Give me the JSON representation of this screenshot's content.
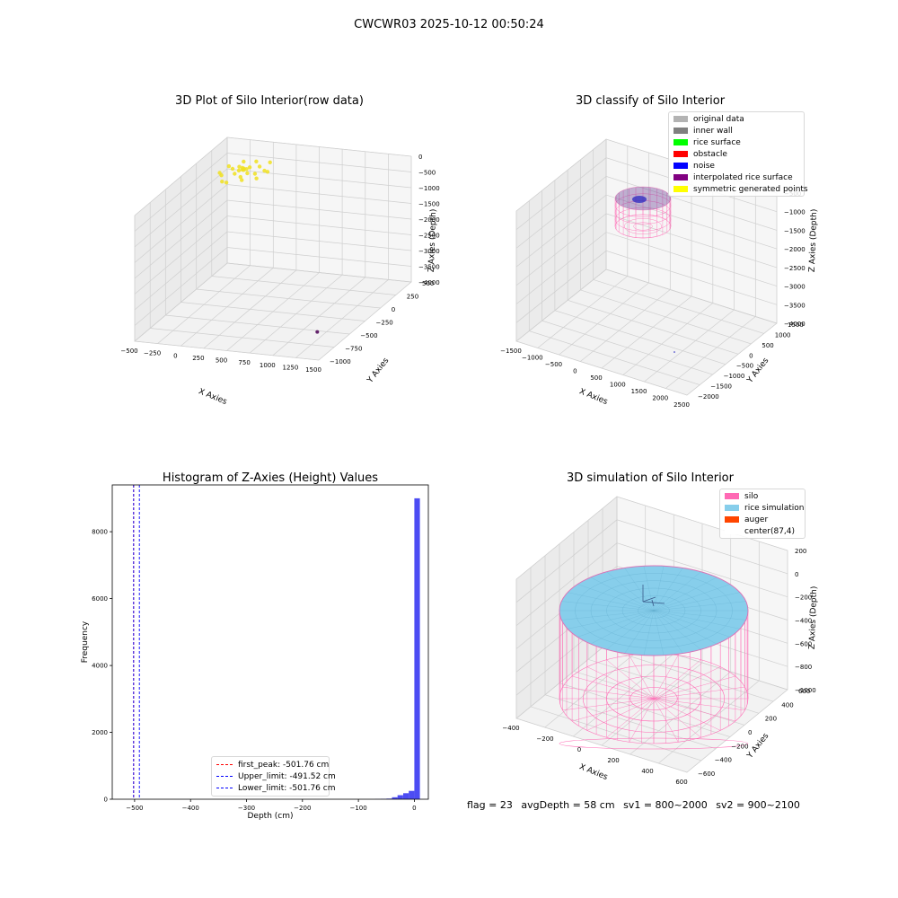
{
  "figure": {
    "suptitle": "CWCWR03 2025-10-12 00:50:24"
  },
  "panels": {
    "raw": {
      "title": "3D Plot of Silo Interior(row data)",
      "xlabel": "X Axies",
      "ylabel": "Y Axies",
      "zlabel": "Z Axies (Depth)",
      "xticks": [
        "−500",
        "−250",
        "0",
        "250",
        "500",
        "750",
        "1000",
        "1250",
        "1500"
      ],
      "yticks": [
        "500",
        "250",
        "0",
        "−250",
        "−500",
        "−750",
        "−1000"
      ],
      "zticks": [
        "0",
        "−500",
        "−1000",
        "−1500",
        "−2000",
        "−2500",
        "−3000",
        "−3500",
        "−4000"
      ]
    },
    "classify": {
      "title": "3D classify of Silo Interior",
      "xlabel": "X Axies",
      "ylabel": "Y Axies",
      "zlabel": "Z Axies (Depth)",
      "xticks": [
        "−1500",
        "−1000",
        "−500",
        "0",
        "500",
        "1000",
        "1500",
        "2000",
        "2500"
      ],
      "yticks": [
        "1500",
        "1000",
        "500",
        "0",
        "−500",
        "−1000",
        "−1500",
        "−2000"
      ],
      "zticks": [
        "−500",
        "−1000",
        "−1500",
        "−2000",
        "−2500",
        "−3000",
        "−3500",
        "−4000"
      ]
    },
    "simulation": {
      "title": "3D simulation of Silo Interior",
      "xlabel": "X Axies",
      "ylabel": "Y Axies",
      "zlabel": "Z Axies (Depth)",
      "xticks": [
        "−400",
        "−200",
        "0",
        "200",
        "400",
        "600"
      ],
      "yticks": [
        "600",
        "400",
        "200",
        "0",
        "−200",
        "−400",
        "−600"
      ],
      "zticks": [
        "200",
        "0",
        "−200",
        "−400",
        "−600",
        "−800",
        "−1000"
      ]
    }
  },
  "legends": {
    "classify": [
      {
        "label": "original data",
        "color": "#b3b3b3"
      },
      {
        "label": "inner wall",
        "color": "#808080"
      },
      {
        "label": "rice surface",
        "color": "#00ff00"
      },
      {
        "label": "obstacle",
        "color": "#ff0000"
      },
      {
        "label": "noise",
        "color": "#0000ff"
      },
      {
        "label": "interpolated rice surface",
        "color": "#800080"
      },
      {
        "label": "symmetric generated points",
        "color": "#ffff00"
      }
    ],
    "simulation": [
      {
        "label": "silo",
        "color": "#ff69b4"
      },
      {
        "label": "rice simulation",
        "color": "#87ceeb"
      },
      {
        "label": "auger",
        "color": "#ff4500"
      },
      {
        "label": "center(87,4)",
        "color": "#ffffff"
      }
    ],
    "histogram": [
      {
        "label": "first_peak: -501.76 cm",
        "color": "#ff0000"
      },
      {
        "label": "Upper_limit: -491.52 cm",
        "color": "#0000ff"
      },
      {
        "label": "Lower_limit: -501.76 cm",
        "color": "#0000ff"
      }
    ]
  },
  "status": {
    "flag": "flag = 23",
    "avg": "avgDepth = 58 cm",
    "sv1": "sv1 = 800~2000",
    "sv2": "sv2 = 900~2100"
  },
  "chart_data": [
    {
      "type": "scatter",
      "title": "3D Plot of Silo Interior(row data)",
      "xlabel": "X Axies",
      "ylabel": "Y Axies",
      "zlabel": "Z Axies (Depth)",
      "xlim": [
        -500,
        1500
      ],
      "ylim": [
        -1000,
        500
      ],
      "zlim": [
        -4000,
        0
      ],
      "series": [
        {
          "color": "#f0e020",
          "points": [
            [
              0,
              0,
              -50
            ],
            [
              40,
              60,
              -60
            ],
            [
              -60,
              40,
              -40
            ],
            [
              80,
              -40,
              -70
            ],
            [
              -30,
              -80,
              -55
            ],
            [
              120,
              100,
              -80
            ],
            [
              -120,
              20,
              -90
            ],
            [
              60,
              -120,
              -65
            ],
            [
              150,
              -20,
              -100
            ],
            [
              -80,
              140,
              -45
            ],
            [
              200,
              60,
              -120
            ],
            [
              -160,
              -100,
              -110
            ],
            [
              30,
              180,
              -75
            ],
            [
              100,
              -160,
              -85
            ],
            [
              -200,
              80,
              -130
            ],
            [
              220,
              -100,
              -95
            ],
            [
              -40,
              -200,
              -140
            ],
            [
              180,
              180,
              -60
            ],
            [
              -220,
              -40,
              -150
            ],
            [
              260,
              20,
              -70
            ],
            [
              -100,
              -180,
              -160
            ],
            [
              10,
              10,
              -30
            ],
            [
              20,
              -10,
              -35
            ],
            [
              -15,
              25,
              -40
            ],
            [
              35,
              15,
              -45
            ],
            [
              -25,
              -20,
              -50
            ]
          ]
        },
        {
          "color": "#4b0055",
          "points": [
            [
              1450,
              -950,
              -3200
            ]
          ]
        }
      ]
    },
    {
      "type": "scatter",
      "title": "3D classify of Silo Interior",
      "xlabel": "X Axies",
      "ylabel": "Y Axies",
      "zlabel": "Z Axies (Depth)",
      "xlim": [
        -1500,
        2500
      ],
      "ylim": [
        -2000,
        1500
      ],
      "zlim": [
        -4000,
        -500
      ],
      "cylinder": {
        "center": [
          87,
          4
        ],
        "radius": 600,
        "ztop": -500,
        "zbottom": -1100,
        "color": "#ff69b4"
      }
    },
    {
      "type": "bar",
      "title": "Histogram of Z-Axies (Height) Values",
      "xlabel": "Depth (cm)",
      "ylabel": "Frequency",
      "xlim": [
        -540,
        25
      ],
      "ylim": [
        0,
        9400
      ],
      "xticks": [
        -500,
        -400,
        -300,
        -200,
        -100,
        0
      ],
      "yticks": [
        0,
        2000,
        4000,
        6000,
        8000
      ],
      "bin_width": 10,
      "bins": [
        {
          "x0": -70,
          "count": 5
        },
        {
          "x0": -60,
          "count": 10
        },
        {
          "x0": -50,
          "count": 20
        },
        {
          "x0": -40,
          "count": 60
        },
        {
          "x0": -30,
          "count": 120
        },
        {
          "x0": -20,
          "count": 180
        },
        {
          "x0": -10,
          "count": 250
        },
        {
          "x0": 0,
          "count": 9000
        }
      ],
      "vlines": [
        {
          "label": "first_peak: -501.76 cm",
          "x": -501.76,
          "color": "#ff0000"
        },
        {
          "label": "Upper_limit: -491.52 cm",
          "x": -491.52,
          "color": "#0000ff"
        },
        {
          "label": "Lower_limit: -501.76 cm",
          "x": -501.76,
          "color": "#0000ff"
        }
      ]
    },
    {
      "type": "area",
      "title": "3D simulation of Silo Interior",
      "xlabel": "X Axies",
      "ylabel": "Y Axies",
      "zlabel": "Z Axies (Depth)",
      "xlim": [
        -500,
        700
      ],
      "ylim": [
        -700,
        700
      ],
      "zlim": [
        -1000,
        250
      ],
      "silo": {
        "center": [
          87,
          4
        ],
        "radius": 600,
        "ztop": -50,
        "zbottom": -1000,
        "color": "#ff69b4"
      },
      "rice": {
        "depth": -58,
        "color": "#87ceeb"
      }
    }
  ]
}
